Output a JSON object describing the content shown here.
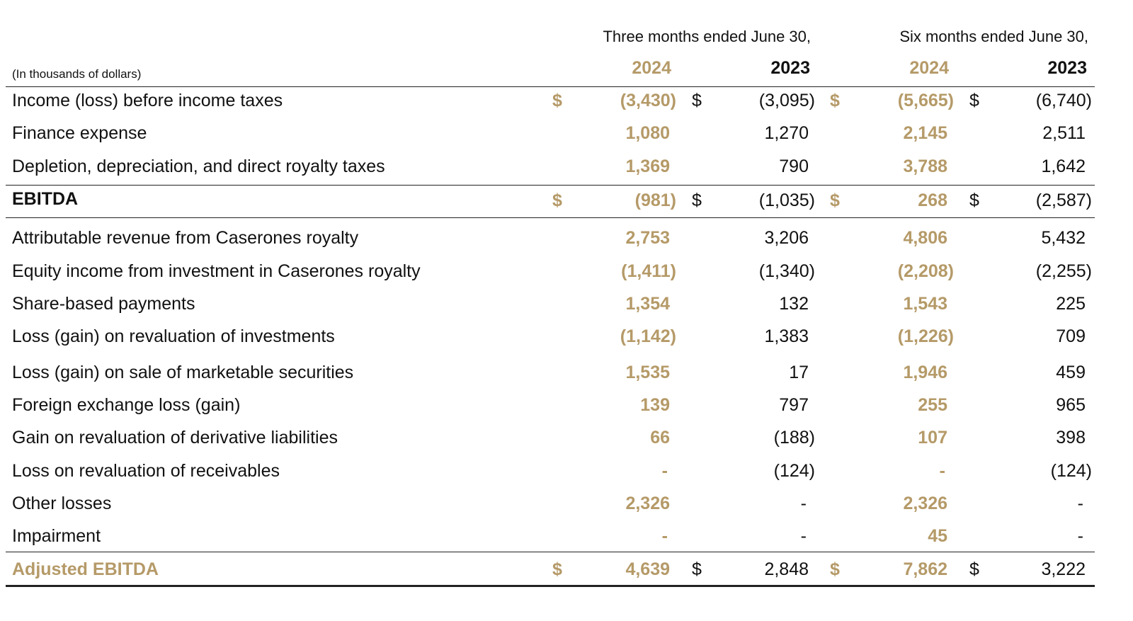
{
  "header": {
    "note": "(In thousands of dollars)",
    "groups": [
      "Three months ended June 30,",
      "Six months ended June 30,"
    ],
    "years": [
      "2024",
      "2023",
      "2024",
      "2023"
    ]
  },
  "currency_symbol": "$",
  "table": {
    "rows": [
      {
        "label": "Income (loss) before income taxes",
        "values": [
          "(3,430)",
          "(3,095)",
          "(5,665)",
          "(6,740)"
        ],
        "dollar": true
      },
      {
        "label": "Finance expense",
        "values": [
          "1,080",
          "1,270",
          "2,145",
          "2,511"
        ]
      },
      {
        "label": "Depletion, depreciation, and direct royalty taxes",
        "values": [
          "1,369",
          "790",
          "3,788",
          "1,642"
        ]
      },
      {
        "label": "EBITDA",
        "values": [
          "(981)",
          "(1,035)",
          "268",
          "(2,587)"
        ],
        "dollar": true,
        "style": "total"
      },
      {
        "label": "Attributable revenue from Caserones royalty",
        "values": [
          "2,753",
          "3,206",
          "4,806",
          "5,432"
        ]
      },
      {
        "label": "Equity income from investment in Caserones royalty",
        "values": [
          "(1,411)",
          "(1,340)",
          "(2,208)",
          "(2,255)"
        ]
      },
      {
        "label": "Share-based payments",
        "values": [
          "1,354",
          "132",
          "1,543",
          "225"
        ]
      },
      {
        "label": "Loss (gain) on revaluation of investments",
        "values": [
          "(1,142)",
          "1,383",
          "(1,226)",
          "709"
        ]
      },
      {
        "label": "Loss (gain) on sale of marketable securities",
        "values": [
          "1,535",
          "17",
          "1,946",
          "459"
        ]
      },
      {
        "label": "Foreign exchange loss (gain)",
        "values": [
          "139",
          "797",
          "255",
          "965"
        ]
      },
      {
        "label": "Gain on revaluation of derivative liabilities",
        "values": [
          "66",
          "(188)",
          "107",
          "398"
        ]
      },
      {
        "label": "Loss on revaluation of receivables",
        "values": [
          "-",
          "(124)",
          "-",
          "(124)"
        ]
      },
      {
        "label": "Other losses",
        "values": [
          "2,326",
          "-",
          "2,326",
          "-"
        ]
      },
      {
        "label": "Impairment",
        "values": [
          "-",
          "-",
          "45",
          "-"
        ]
      },
      {
        "label": "Adjusted EBITDA",
        "values": [
          "4,639",
          "2,848",
          "7,862",
          "3,222"
        ],
        "dollar": true,
        "style": "adjusted"
      }
    ]
  }
}
